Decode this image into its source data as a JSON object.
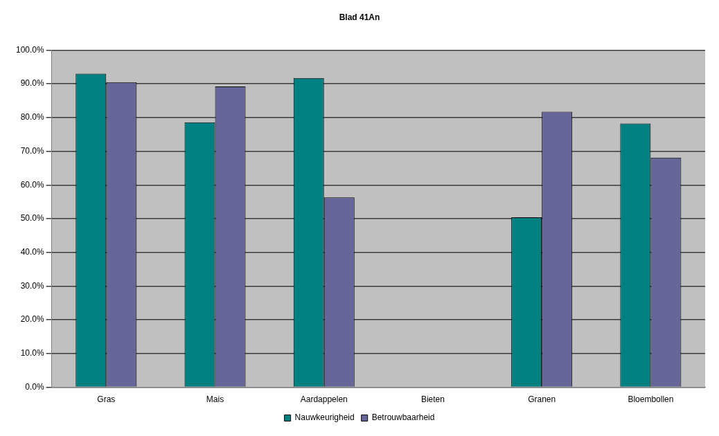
{
  "chart_data": {
    "type": "bar",
    "title": "Blad 41An",
    "categories": [
      "Gras",
      "Mais",
      "Aardappelen",
      "Bieten",
      "Granen",
      "Bloembollen"
    ],
    "series": [
      {
        "name": "Nauwkeurigheid",
        "color": "#008080",
        "values": [
          93.0,
          78.6,
          91.7,
          null,
          50.4,
          78.2
        ]
      },
      {
        "name": "Betrouwbaarheid",
        "color": "#666699",
        "values": [
          90.5,
          89.2,
          56.3,
          null,
          81.7,
          68.1
        ]
      }
    ],
    "ylim": [
      0,
      100
    ],
    "yticks": [
      {
        "value": 0,
        "label": "0.0%"
      },
      {
        "value": 10,
        "label": "10.0%"
      },
      {
        "value": 20,
        "label": "20.0%"
      },
      {
        "value": 30,
        "label": "30.0%"
      },
      {
        "value": 40,
        "label": "40.0%"
      },
      {
        "value": 50,
        "label": "50.0%"
      },
      {
        "value": 60,
        "label": "60.0%"
      },
      {
        "value": 70,
        "label": "70.0%"
      },
      {
        "value": 80,
        "label": "80.0%"
      },
      {
        "value": 90,
        "label": "90.0%"
      },
      {
        "value": 100,
        "label": "100.0%"
      }
    ],
    "grid": "y",
    "legend": "bottom"
  }
}
